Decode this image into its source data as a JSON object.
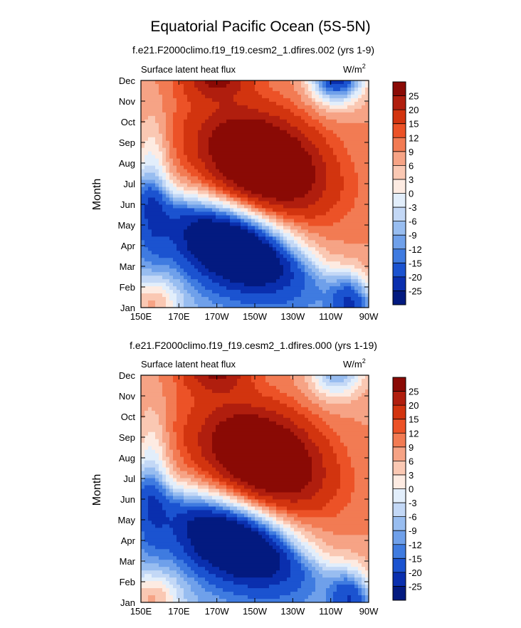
{
  "page": {
    "title": "Equatorial Pacific Ocean (5S-5N)"
  },
  "colorbar": {
    "labels": [
      "25",
      "20",
      "15",
      "12",
      "9",
      "6",
      "3",
      "0",
      "-3",
      "-6",
      "-9",
      "-12",
      "-15",
      "-20",
      "-25"
    ],
    "colors": [
      "#8a0a05",
      "#b01e0e",
      "#d2340f",
      "#ec5227",
      "#f27b53",
      "#f6a385",
      "#fac8b3",
      "#fdebe2",
      "#e2eefb",
      "#c3d8f6",
      "#98bdf0",
      "#6fa0ea",
      "#3f7be0",
      "#1b53d0",
      "#0a2fae",
      "#031a80"
    ]
  },
  "chart_data": [
    {
      "type": "heatmap",
      "title": "f.e21.F2000climo.f19_f19.cesm2_1.dfires.002 (yrs 1-9)",
      "subtitle_left": "Surface latent heat flux",
      "units": "W/m",
      "units_sup": "2",
      "ylabel": "Month",
      "x_ticks": [
        "150E",
        "170E",
        "170W",
        "150W",
        "130W",
        "110W",
        "90W"
      ],
      "y_ticks": [
        "Jan",
        "Feb",
        "Mar",
        "Apr",
        "May",
        "Jun",
        "Jul",
        "Aug",
        "Sep",
        "Oct",
        "Nov",
        "Dec"
      ],
      "x_range": [
        "150E",
        "90W"
      ],
      "y_range": [
        "Jan",
        "Dec"
      ],
      "levels": [
        -25,
        -20,
        -15,
        -12,
        -9,
        -6,
        -3,
        0,
        3,
        6,
        9,
        12,
        15,
        20,
        25
      ],
      "grid": false
    },
    {
      "type": "heatmap",
      "title": "f.e21.F2000climo.f19_f19.cesm2_1.dfires.000 (yrs 1-19)",
      "subtitle_left": "Surface latent heat flux",
      "units": "W/m",
      "units_sup": "2",
      "ylabel": "Month",
      "x_ticks": [
        "150E",
        "170E",
        "170W",
        "150W",
        "130W",
        "110W",
        "90W"
      ],
      "y_ticks": [
        "Jan",
        "Feb",
        "Mar",
        "Apr",
        "May",
        "Jun",
        "Jul",
        "Aug",
        "Sep",
        "Oct",
        "Nov",
        "Dec"
      ],
      "x_range": [
        "150E",
        "90W"
      ],
      "y_range": [
        "Jan",
        "Dec"
      ],
      "levels": [
        -25,
        -20,
        -15,
        -12,
        -9,
        -6,
        -3,
        0,
        3,
        6,
        9,
        12,
        15,
        20,
        25
      ],
      "grid": false
    }
  ]
}
